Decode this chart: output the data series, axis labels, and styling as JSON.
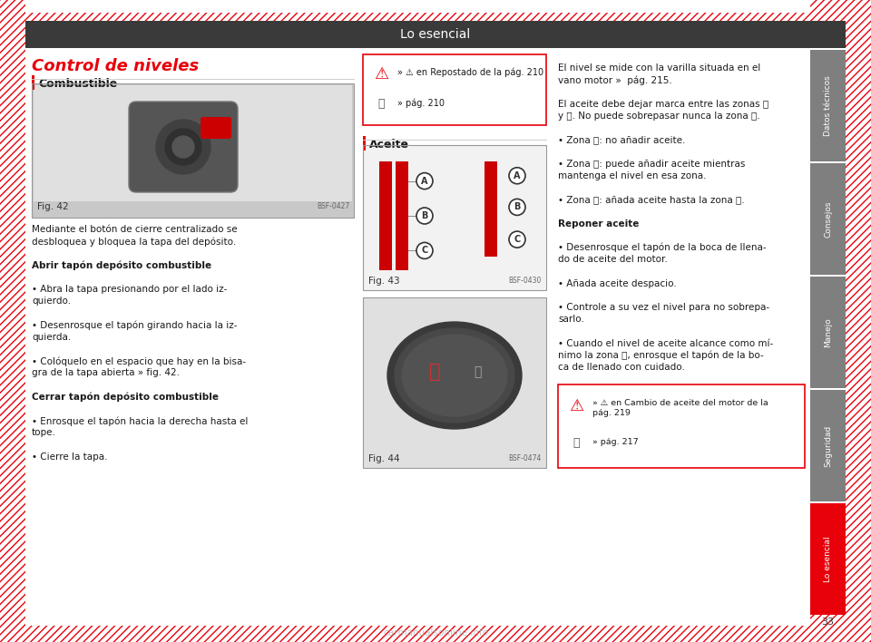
{
  "title_bar_text": "Lo esencial",
  "title_bar_color": "#3a3a3a",
  "title_bar_text_color": "#ffffff",
  "page_bg": "#ffffff",
  "hatch_color": "#e8000a",
  "section_title": "Control de niveles",
  "section_title_color": "#e8000a",
  "subsection1": "Combustible",
  "subsection2": "Aceite",
  "left_bar_color": "#e8000a",
  "tab_labels": [
    "Datos técnicos",
    "Consejos",
    "Manejo",
    "Seguridad",
    "Lo esencial"
  ],
  "tab_active_color": "#e8000a",
  "tab_inactive_color": "#7f7f7f",
  "page_number": "33",
  "body_text_col1": [
    "Mediante el botón de cierre centralizado se",
    "desbloquea y bloquea la tapa del depósito.",
    "",
    "Abrir tapón depósito combustible",
    "",
    "• Abra la tapa presionando por el lado iz-",
    "quierdo.",
    "",
    "• Desenrosque el tapón girando hacia la iz-",
    "quierda.",
    "",
    "• Colóquelo en el espacio que hay en la bisa-",
    "gra de la tapa abierta » fig. 42.",
    "",
    "Cerrar tapón depósito combustible",
    "",
    "• Enrosque el tapón hacia la derecha hasta el",
    "tope.",
    "",
    "• Cierre la tapa."
  ],
  "bold_lines_col1": [
    "Abrir tapón depósito combustible",
    "Cerrar tapón depósito combustible"
  ],
  "right_col_text": [
    "El nivel se mide con la varilla situada en el",
    "vano motor »  pág. 215.",
    "",
    "El aceite debe dejar marca entre las zonas Ⓐ",
    "y Ⓒ. No puede sobrepasar nunca la zona Ⓐ.",
    "",
    "• Zona Ⓐ: no añadir aceite.",
    "",
    "• Zona Ⓑ: puede añadir aceite mientras",
    "mantenga el nivel en esa zona.",
    "",
    "• Zona Ⓒ: añada aceite hasta la zona Ⓑ.",
    "",
    "Reponer aceite",
    "",
    "• Desenrosque el tapón de la boca de llena-",
    "do de aceite del motor.",
    "",
    "• Añada aceite despacio.",
    "",
    "• Controle a su vez el nivel para no sobrepa-",
    "sarlo.",
    "",
    "• Cuando el nivel de aceite alcance como mí-",
    "nimo la zona Ⓑ, enrosque el tapón de la bo-",
    "ca de llenado con cuidado."
  ],
  "bold_lines_right": [
    "Reponer aceite"
  ],
  "fig42_label": "Fig. 42",
  "fig43_label": "Fig. 43",
  "fig44_label": "Fig. 44",
  "fig42_code": "BSF-0427",
  "fig43_code": "BSF-0430",
  "fig44_code": "BSF-0474"
}
